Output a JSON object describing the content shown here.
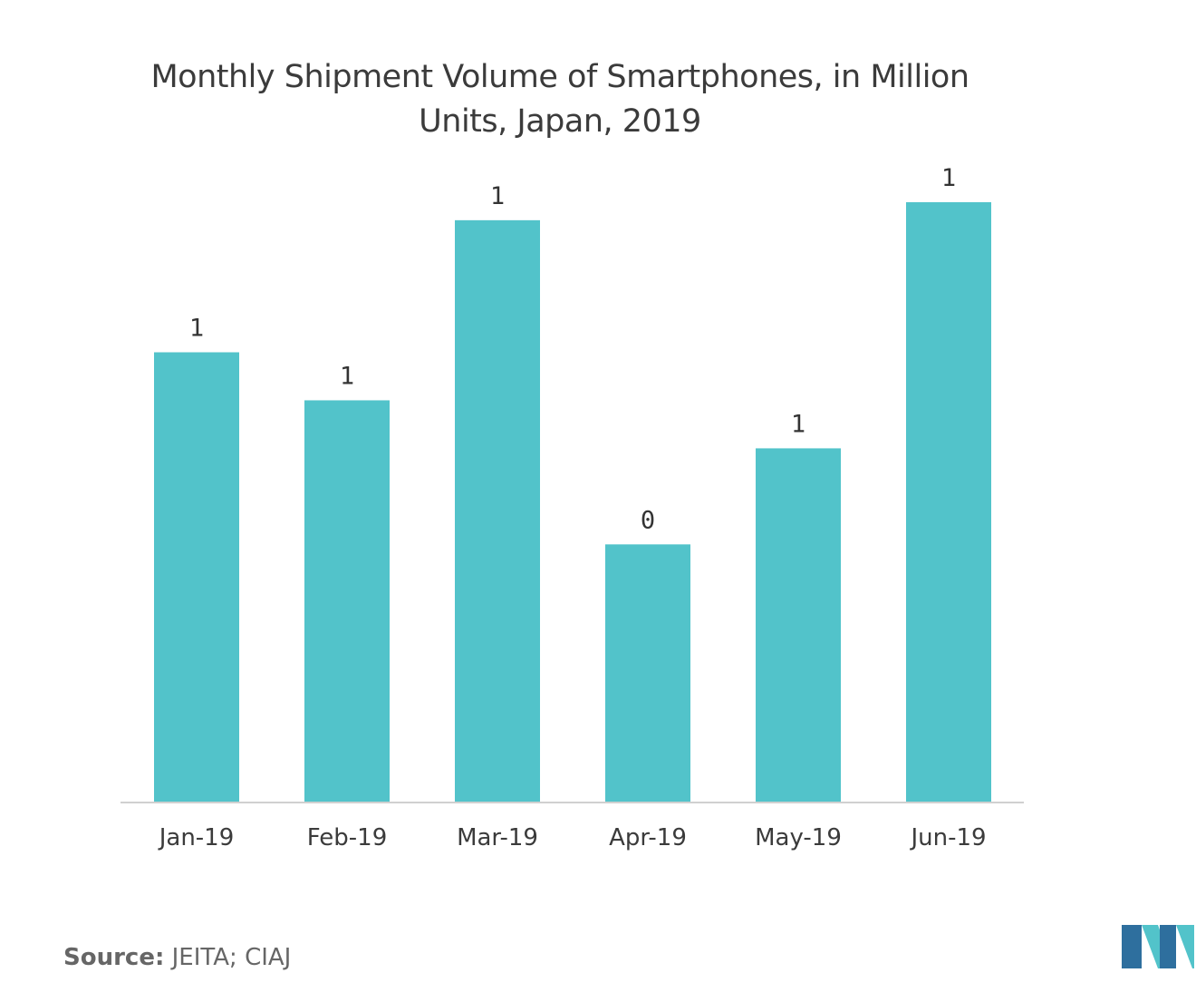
{
  "chart_data": {
    "type": "bar",
    "title": [
      "Monthly Shipment Volume of Smartphones,  in Million",
      "Units, Japan, 2019"
    ],
    "categories": [
      "Jan-19",
      "Feb-19",
      "Mar-19",
      "Apr-19",
      "May-19",
      "Jun-19"
    ],
    "values": [
      0.75,
      0.67,
      0.97,
      0.43,
      0.59,
      1.0
    ],
    "data_labels": [
      "1",
      "1",
      "1",
      "0",
      "1",
      "1"
    ],
    "xlabel": "",
    "ylabel": "",
    "ylim": [
      0,
      1.0
    ],
    "grid": false,
    "legend": "none",
    "bar_color": "#52c3ca",
    "axis_color": "#d0d0d0"
  },
  "source": {
    "prefix": "Source:",
    "text": " JEITA; CIAJ"
  },
  "logo": {
    "name": "mordor-intelligence-logo",
    "colors": [
      "#2e6f9e",
      "#52c3ca"
    ]
  }
}
